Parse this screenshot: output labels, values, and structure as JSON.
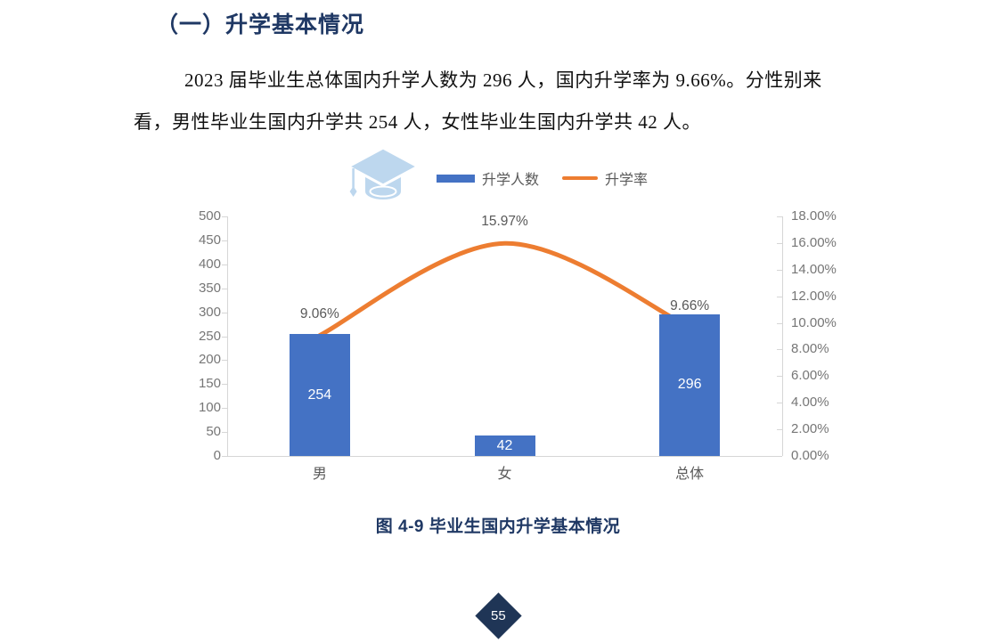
{
  "section": {
    "heading": "（一）升学基本情况"
  },
  "paragraph": {
    "lines": [
      "2023 届毕业生总体国内升学人数为 296 人，国内升学率为 9.66%。分性别来",
      "看，男性毕业生国内升学共 254 人，女性毕业生国内升学共 42 人。"
    ]
  },
  "chart_data": {
    "type": "bar+line",
    "categories": [
      "男",
      "女",
      "总体"
    ],
    "series": [
      {
        "name": "升学人数",
        "type": "bar",
        "axis": "left",
        "color": "#4472C4",
        "values": [
          254,
          42,
          296
        ],
        "labels": [
          "254",
          "42",
          "296"
        ]
      },
      {
        "name": "升学率",
        "type": "line",
        "axis": "right",
        "color": "#ED7D31",
        "values": [
          9.06,
          15.97,
          9.66
        ],
        "labels": [
          "9.06%",
          "15.97%",
          "9.66%"
        ]
      }
    ],
    "left_axis": {
      "min": 0,
      "max": 500,
      "ticks": [
        "500",
        "450",
        "400",
        "350",
        "300",
        "250",
        "200",
        "150",
        "100",
        "50",
        "0"
      ]
    },
    "right_axis": {
      "min": 0,
      "max": 18,
      "ticks": [
        "18.00%",
        "16.00%",
        "14.00%",
        "12.00%",
        "10.00%",
        "8.00%",
        "6.00%",
        "4.00%",
        "2.00%",
        "0.00%"
      ]
    },
    "grid": false,
    "legend_position": "top",
    "icon": "graduation-cap",
    "icon_color": "#BDD7EE"
  },
  "figure": {
    "caption": "图 4-9 毕业生国内升学基本情况"
  },
  "footer": {
    "page_number": "55"
  },
  "theme": {
    "heading_color": "#1F3864",
    "badge_color": "#1F3556",
    "axis_line_color": "#D6D6D6",
    "axis_text_color": "#767676",
    "label_text_color": "#595959"
  }
}
